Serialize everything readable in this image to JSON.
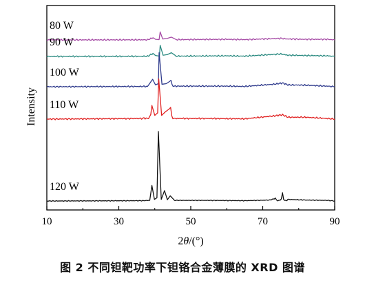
{
  "chart_data": {
    "type": "line",
    "xlabel_prefix": "2",
    "xlabel_theta": "θ",
    "xlabel_suffix": "/(°)",
    "ylabel": "Intensity",
    "xlim": [
      10,
      90
    ],
    "xticks": [
      10,
      30,
      50,
      70,
      90
    ],
    "grid": false,
    "series": [
      {
        "name": "80 W",
        "color": "#a64ca6",
        "baseline": 0.0,
        "scale": 0.45,
        "points": [
          [
            10,
            0
          ],
          [
            38,
            0.02
          ],
          [
            39.5,
            0.35
          ],
          [
            40.2,
            0.1
          ],
          [
            41.2,
            0.05
          ],
          [
            41.5,
            1.3
          ],
          [
            42.2,
            0.15
          ],
          [
            43.5,
            0.25
          ],
          [
            44.6,
            0.45
          ],
          [
            46,
            0.05
          ],
          [
            60,
            0.1
          ],
          [
            65,
            0.05
          ],
          [
            75,
            0.25
          ],
          [
            77,
            0.15
          ],
          [
            82,
            0.1
          ],
          [
            88,
            0.1
          ],
          [
            90,
            0
          ]
        ]
      },
      {
        "name": "90 W",
        "color": "#2a8a80",
        "baseline": 0.0,
        "scale": 0.45,
        "points": [
          [
            10,
            0
          ],
          [
            38,
            0.02
          ],
          [
            39.5,
            0.5
          ],
          [
            40.2,
            0.15
          ],
          [
            41.3,
            0.05
          ],
          [
            41.5,
            1.8
          ],
          [
            42.3,
            0.2
          ],
          [
            43.5,
            0.3
          ],
          [
            44.6,
            0.6
          ],
          [
            46,
            0.05
          ],
          [
            60,
            0.1
          ],
          [
            65,
            0.05
          ],
          [
            75,
            0.4
          ],
          [
            77,
            0.2
          ],
          [
            82,
            0.15
          ],
          [
            88,
            0.1
          ],
          [
            90,
            0
          ]
        ]
      },
      {
        "name": "100 W",
        "color": "#2e3a8c",
        "baseline": 0.0,
        "scale": 0.45,
        "points": [
          [
            10,
            0
          ],
          [
            38,
            0.05
          ],
          [
            39.4,
            1.2
          ],
          [
            40.2,
            0.3
          ],
          [
            41.0,
            0.5
          ],
          [
            41.2,
            5.5
          ],
          [
            42.0,
            0.4
          ],
          [
            43.2,
            0.5
          ],
          [
            44.5,
            1.0
          ],
          [
            46,
            0.1
          ],
          [
            60,
            0.1
          ],
          [
            65,
            0.05
          ],
          [
            73,
            0.4
          ],
          [
            75.5,
            0.6
          ],
          [
            77,
            0.3
          ],
          [
            82,
            0.25
          ],
          [
            88,
            0.1
          ],
          [
            90,
            0
          ]
        ]
      },
      {
        "name": "110 W",
        "color": "#e02020",
        "baseline": 0.0,
        "scale": 0.45,
        "points": [
          [
            10,
            0
          ],
          [
            37,
            0.1
          ],
          [
            39.2,
            2.2
          ],
          [
            40.0,
            0.6
          ],
          [
            40.8,
            1.0
          ],
          [
            41.1,
            6.5
          ],
          [
            41.9,
            0.6
          ],
          [
            43.0,
            1.2
          ],
          [
            44.4,
            1.8
          ],
          [
            46,
            0.1
          ],
          [
            55,
            0.1
          ],
          [
            65,
            0.05
          ],
          [
            73,
            0.5
          ],
          [
            75.5,
            0.7
          ],
          [
            77,
            0.3
          ],
          [
            82,
            0.3
          ],
          [
            88,
            0.1
          ],
          [
            90,
            0
          ]
        ]
      },
      {
        "name": "120 W",
        "color": "#111111",
        "baseline": 0.0,
        "scale": 0.45,
        "points": [
          [
            10,
            0
          ],
          [
            37,
            0.1
          ],
          [
            38.6,
            0.2
          ],
          [
            39.2,
            4.8
          ],
          [
            39.9,
            0.5
          ],
          [
            40.6,
            1.0
          ],
          [
            41.0,
            21.5
          ],
          [
            41.8,
            0.5
          ],
          [
            42.7,
            3.2
          ],
          [
            43.5,
            0.4
          ],
          [
            44.3,
            1.6
          ],
          [
            45.5,
            0.2
          ],
          [
            55,
            0.2
          ],
          [
            65,
            0.1
          ],
          [
            72,
            0.3
          ],
          [
            73.5,
            0.8
          ],
          [
            75.5,
            2.4
          ],
          [
            77,
            0.5
          ],
          [
            82,
            0.3
          ],
          [
            88,
            0.2
          ],
          [
            90,
            0
          ]
        ]
      }
    ]
  },
  "caption": "图 2    不同钽靶功率下钽铬合金薄膜的 XRD 图谱"
}
